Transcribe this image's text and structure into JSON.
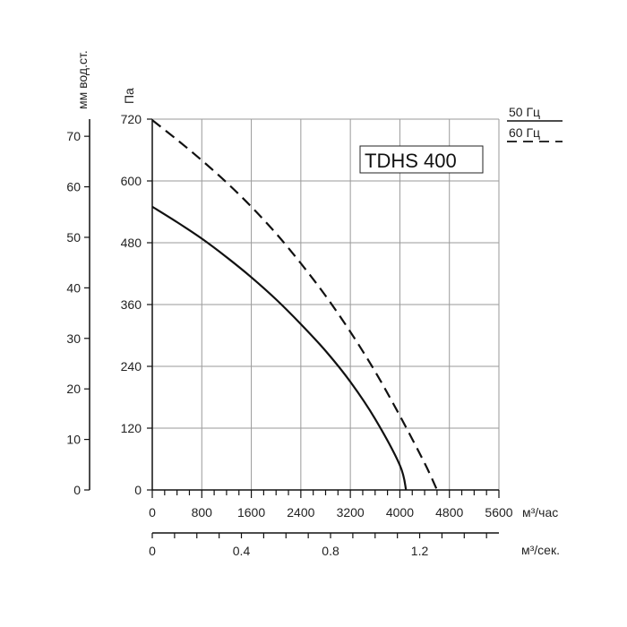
{
  "chart_data": {
    "type": "line",
    "title": "",
    "model": "TDHS 400",
    "ylabel_pa": "Па",
    "ylabel_mm": "мм вод.ст.",
    "xlabel_m3h": "м³/час",
    "xlabel_m3s": "м³/сек.",
    "y_pa_ticks": [
      "0",
      "120",
      "240",
      "360",
      "480",
      "600",
      "720"
    ],
    "y_mm_ticks": [
      "0",
      "10",
      "20",
      "30",
      "40",
      "50",
      "60",
      "70"
    ],
    "x_m3h_ticks": [
      "0",
      "800",
      "1600",
      "2400",
      "3200",
      "4000",
      "4800",
      "5600"
    ],
    "x_m3s_ticks": [
      "0",
      "0.4",
      "0.8",
      "1.2"
    ],
    "xlim": [
      0,
      5600
    ],
    "ylim": [
      0,
      720
    ],
    "grid": true,
    "legend": {
      "position": "top-right",
      "items": [
        {
          "label": "50 Гц",
          "style": "solid"
        },
        {
          "label": "60 Гц",
          "style": "dashed"
        }
      ]
    },
    "series": [
      {
        "name": "50 Гц",
        "style": "solid",
        "color": "#111111",
        "points": [
          [
            0,
            550
          ],
          [
            400,
            520
          ],
          [
            800,
            488
          ],
          [
            1200,
            452
          ],
          [
            1600,
            413
          ],
          [
            2000,
            370
          ],
          [
            2400,
            322
          ],
          [
            2800,
            270
          ],
          [
            3200,
            210
          ],
          [
            3600,
            138
          ],
          [
            4000,
            48
          ],
          [
            4100,
            0
          ]
        ]
      },
      {
        "name": "60 Гц",
        "style": "dashed",
        "color": "#111111",
        "points": [
          [
            0,
            718
          ],
          [
            400,
            680
          ],
          [
            800,
            640
          ],
          [
            1200,
            597
          ],
          [
            1600,
            550
          ],
          [
            2000,
            498
          ],
          [
            2400,
            440
          ],
          [
            2800,
            377
          ],
          [
            3200,
            307
          ],
          [
            3600,
            230
          ],
          [
            4000,
            144
          ],
          [
            4400,
            52
          ],
          [
            4600,
            0
          ]
        ]
      }
    ]
  }
}
